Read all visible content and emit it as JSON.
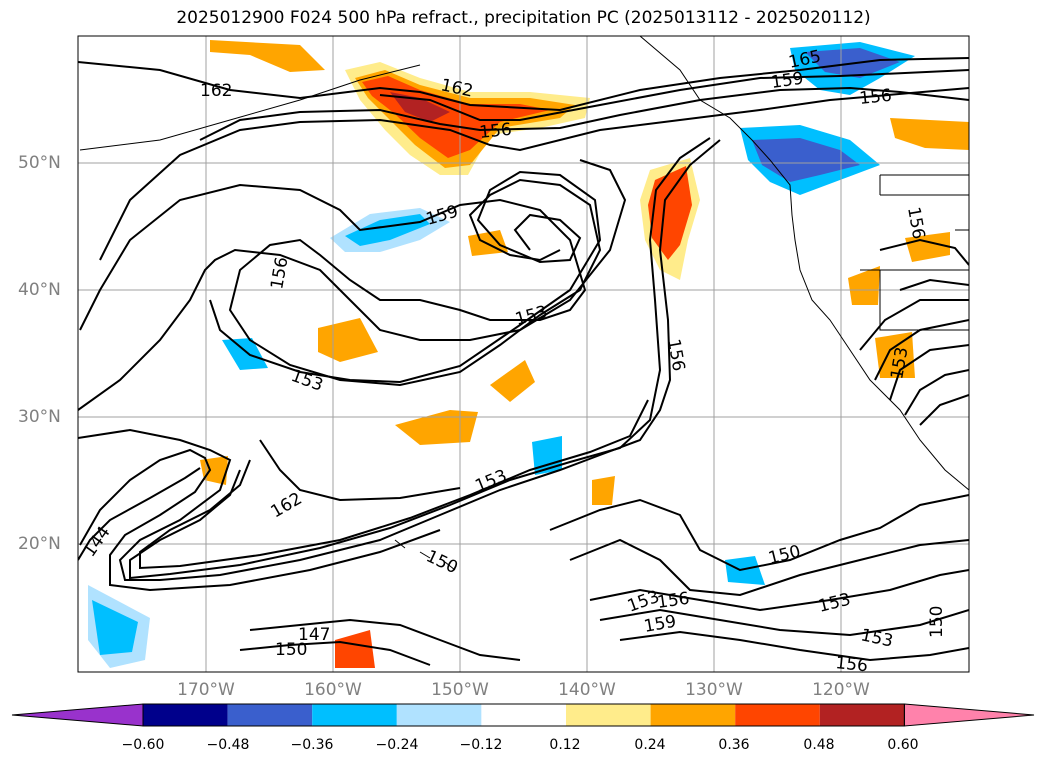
{
  "title": "2025012900 F024 500 hPa refract., precipitation PC (2025013112 - 2025020112)",
  "lat_labels": [
    "50°N",
    "40°N",
    "30°N",
    "20°N"
  ],
  "lon_labels": [
    "170°W",
    "160°W",
    "150°W",
    "140°W",
    "130°W",
    "120°W"
  ],
  "contour_labels": [
    "165",
    "162",
    "162",
    "159",
    "156",
    "156",
    "159",
    "156",
    "153",
    "153",
    "156",
    "153",
    "162",
    "144",
    "150",
    "150",
    "153",
    "156",
    "159",
    "147",
    "150",
    "153",
    "153",
    "156",
    "150",
    "153",
    "156"
  ],
  "colorbar": {
    "ticks": [
      "−0.60",
      "−0.48",
      "−0.36",
      "−0.24",
      "−0.12",
      "0.12",
      "0.24",
      "0.36",
      "0.48",
      "0.60"
    ],
    "colors": [
      "#9932cc",
      "#00008b",
      "#3a5fcd",
      "#00bfff",
      "#b0e2ff",
      "#ffffff",
      "#ffec8b",
      "#ffa500",
      "#ff4500",
      "#b22222",
      "#ff82ab"
    ]
  },
  "colors": {
    "anomaly_strong_pos": "#b22222",
    "anomaly_pos": "#ff4500",
    "anomaly_mid_pos": "#ffa500",
    "anomaly_weak_pos": "#ffec8b",
    "anomaly_strong_neg": "#3a5fcd",
    "anomaly_neg": "#00bfff",
    "anomaly_weak_neg": "#b0e2ff"
  }
}
